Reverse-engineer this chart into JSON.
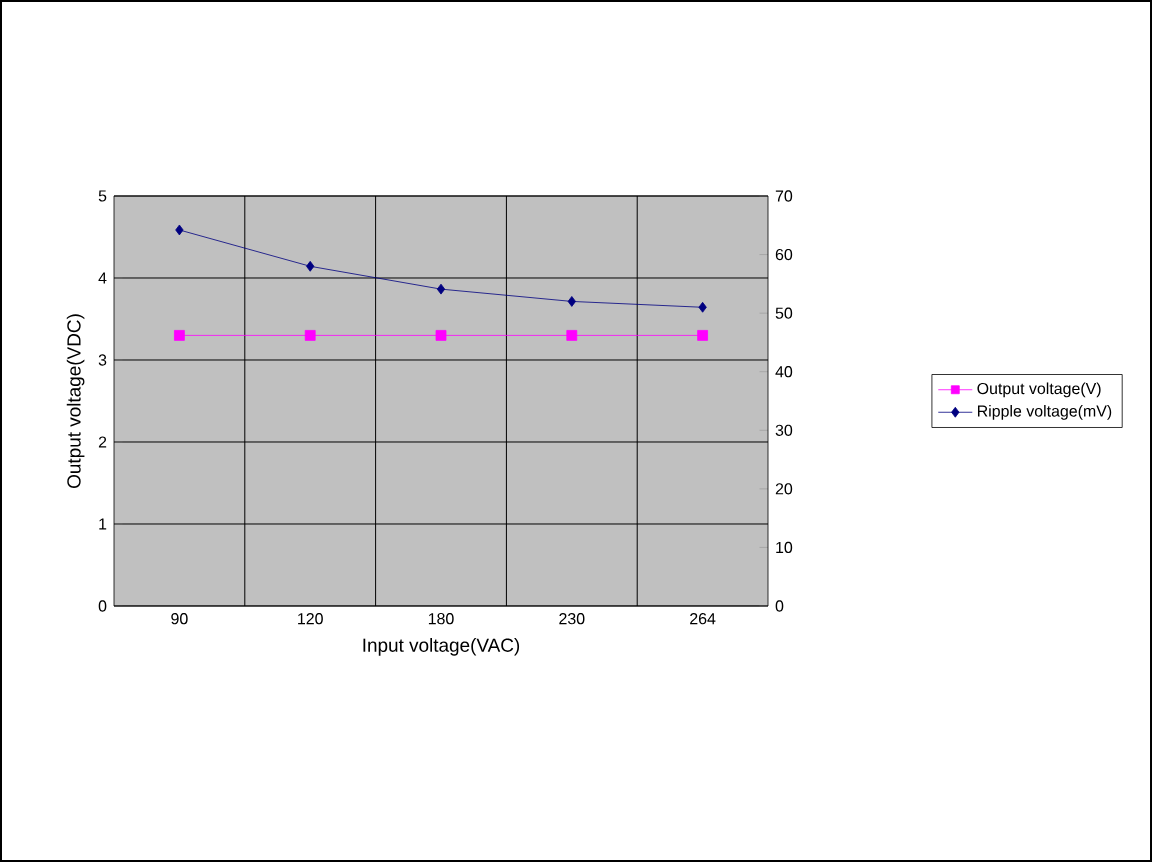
{
  "chart_data": {
    "type": "line",
    "xlabel": "Input voltage(VAC)",
    "ylabel": "Output voltage(VDC)",
    "categories": [
      "90",
      "120",
      "180",
      "230",
      "264"
    ],
    "ylim": [
      0,
      5
    ],
    "yticks": [
      0,
      1,
      2,
      3,
      4,
      5
    ],
    "y2lim": [
      0,
      70
    ],
    "y2ticks": [
      0,
      10,
      20,
      30,
      40,
      50,
      60,
      70
    ],
    "grid": true,
    "legend": "right",
    "series": [
      {
        "name": "Output voltage(V)",
        "color": "#ff00ff",
        "marker": "square",
        "values": [
          3.3,
          3.3,
          3.3,
          3.3,
          3.3
        ]
      },
      {
        "name": "Ripple voltage(mV)",
        "color": "#000080",
        "marker": "diamond",
        "axis": "y2",
        "values": [
          64.2,
          58.0,
          54.1,
          52.0,
          51.0
        ]
      }
    ]
  }
}
